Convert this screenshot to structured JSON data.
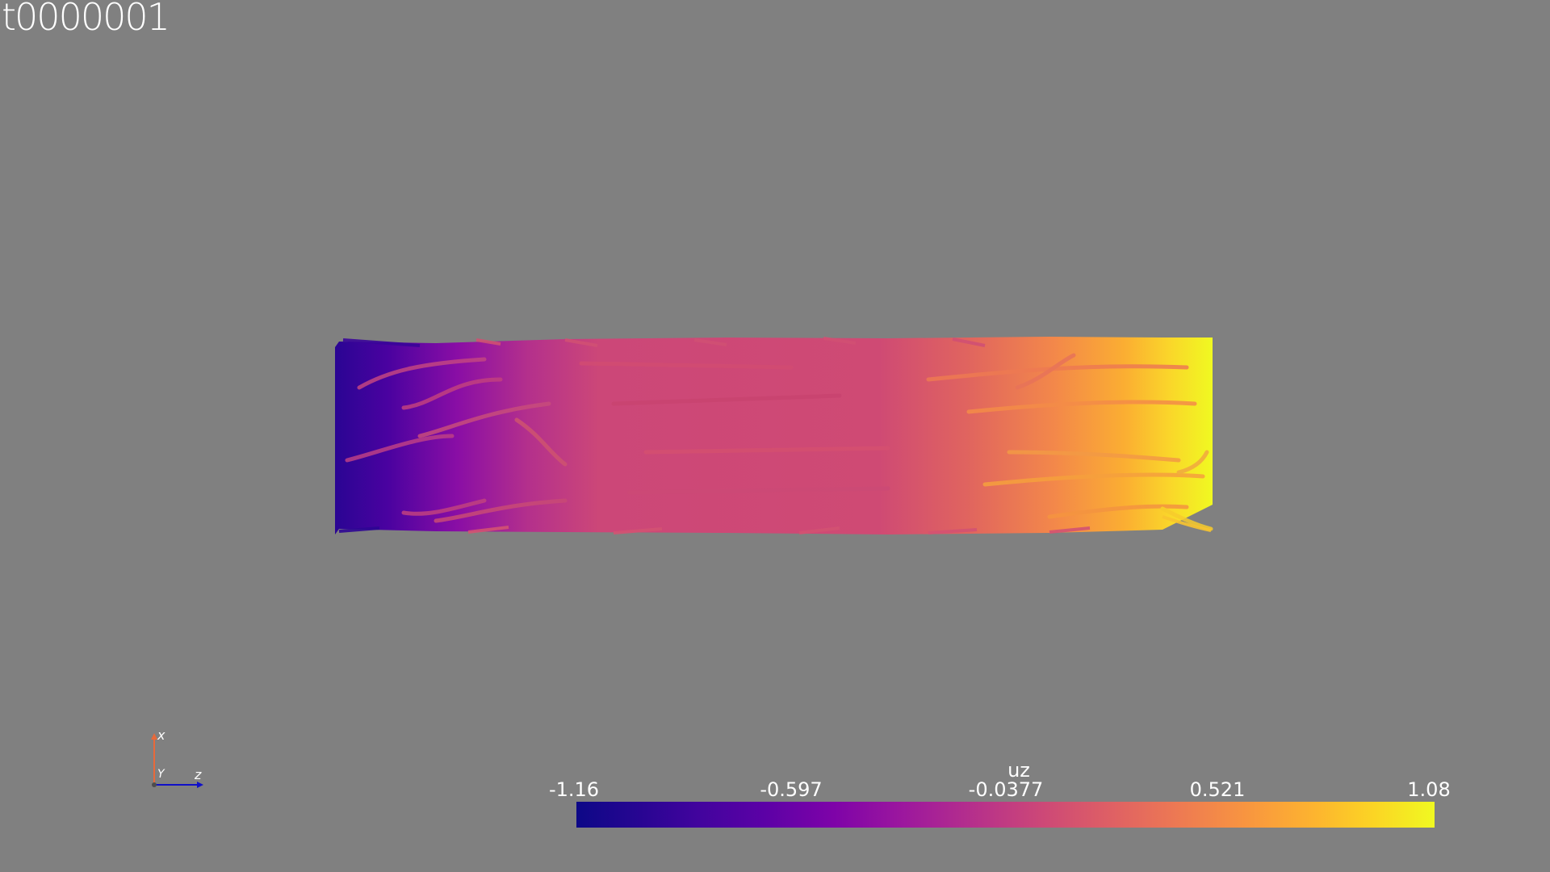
{
  "time_label": "t0000001",
  "orientation_axes": {
    "x_label": "x",
    "y_label": "Y",
    "z_label": "z",
    "x_axis_color": "#e8693a",
    "z_axis_color": "#1010c8"
  },
  "colorbar": {
    "title": "uz",
    "ticks": [
      "-1.16",
      "-0.597",
      "-0.0377",
      "0.521",
      "1.08"
    ],
    "colormap": "plasma",
    "range": [
      -1.16,
      1.08
    ]
  },
  "colors": {
    "background": "#808080",
    "low": "#0d0887",
    "mid": "#cc4778",
    "high": "#f0f921"
  }
}
